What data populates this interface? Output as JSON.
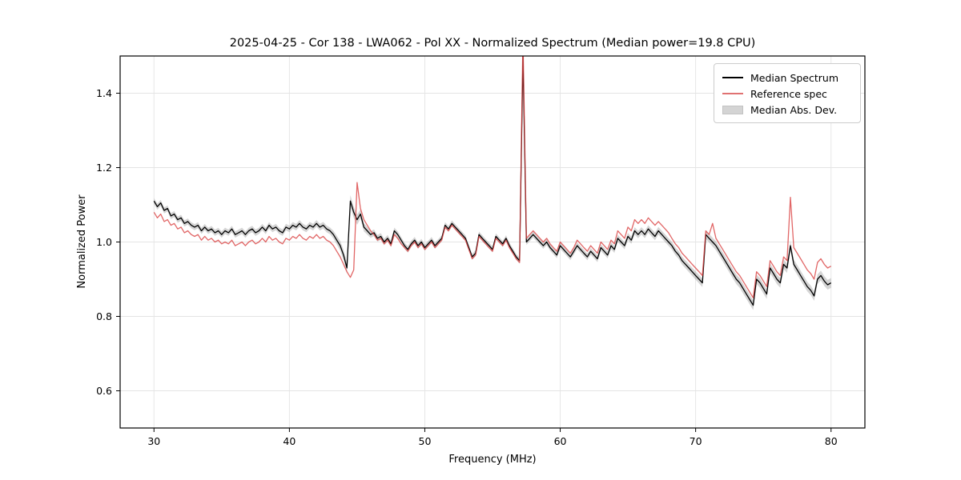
{
  "chart_data": {
    "type": "line",
    "title": "2025-04-25 - Cor 138 - LWA062 - Pol XX - Normalized Spectrum (Median power=19.8 CPU)",
    "xlabel": "Frequency (MHz)",
    "ylabel": "Normalized Power",
    "xlim": [
      27.5,
      82.5
    ],
    "ylim": [
      0.5,
      1.5
    ],
    "xticks": [
      30,
      40,
      50,
      60,
      70,
      80
    ],
    "ytick_labels": [
      "0.6",
      "0.8",
      "1.0",
      "1.2",
      "1.4"
    ],
    "yticks": [
      0.6,
      0.8,
      1.0,
      1.2,
      1.4
    ],
    "grid": true,
    "legend_position": "upper right",
    "x": {
      "start": 30.0,
      "step": 0.25,
      "count": 201,
      "unit": "MHz"
    },
    "series": [
      {
        "name": "Median Spectrum",
        "color": "#000000",
        "values": [
          1.11,
          1.095,
          1.105,
          1.085,
          1.09,
          1.07,
          1.075,
          1.06,
          1.065,
          1.05,
          1.055,
          1.045,
          1.04,
          1.045,
          1.03,
          1.04,
          1.03,
          1.035,
          1.025,
          1.03,
          1.02,
          1.03,
          1.025,
          1.035,
          1.02,
          1.025,
          1.03,
          1.02,
          1.03,
          1.035,
          1.025,
          1.03,
          1.04,
          1.03,
          1.045,
          1.035,
          1.04,
          1.03,
          1.025,
          1.04,
          1.035,
          1.045,
          1.04,
          1.05,
          1.04,
          1.035,
          1.045,
          1.04,
          1.05,
          1.04,
          1.045,
          1.035,
          1.03,
          1.02,
          1.005,
          0.99,
          0.965,
          0.93,
          1.11,
          1.08,
          1.06,
          1.075,
          1.04,
          1.03,
          1.02,
          1.025,
          1.01,
          1.015,
          1.0,
          1.01,
          0.995,
          1.03,
          1.02,
          1.005,
          0.99,
          0.98,
          0.995,
          1.005,
          0.99,
          1.0,
          0.985,
          0.995,
          1.005,
          0.99,
          1.0,
          1.01,
          1.045,
          1.035,
          1.05,
          1.04,
          1.03,
          1.02,
          1.01,
          0.985,
          0.96,
          0.97,
          1.02,
          1.01,
          1.0,
          0.99,
          0.98,
          1.015,
          1.005,
          0.995,
          1.01,
          0.99,
          0.975,
          0.96,
          0.95,
          1.5,
          1.0,
          1.01,
          1.02,
          1.01,
          1.0,
          0.99,
          1.0,
          0.985,
          0.975,
          0.965,
          0.99,
          0.98,
          0.97,
          0.96,
          0.975,
          0.99,
          0.98,
          0.97,
          0.96,
          0.975,
          0.965,
          0.955,
          0.985,
          0.975,
          0.965,
          0.99,
          0.98,
          1.01,
          1.0,
          0.99,
          1.015,
          1.005,
          1.03,
          1.02,
          1.03,
          1.02,
          1.035,
          1.025,
          1.015,
          1.03,
          1.02,
          1.01,
          1.0,
          0.99,
          0.975,
          0.965,
          0.95,
          0.94,
          0.93,
          0.92,
          0.91,
          0.9,
          0.89,
          1.02,
          1.01,
          1.0,
          0.99,
          0.975,
          0.96,
          0.945,
          0.93,
          0.915,
          0.9,
          0.89,
          0.875,
          0.86,
          0.845,
          0.83,
          0.9,
          0.89,
          0.875,
          0.86,
          0.93,
          0.915,
          0.9,
          0.89,
          0.94,
          0.93,
          0.99,
          0.94,
          0.925,
          0.91,
          0.895,
          0.88,
          0.87,
          0.855,
          0.9,
          0.91,
          0.895,
          0.885,
          0.89
        ]
      },
      {
        "name": "Reference spec",
        "color": "#d94040",
        "alpha": 0.8,
        "values": [
          1.08,
          1.065,
          1.075,
          1.055,
          1.06,
          1.045,
          1.05,
          1.035,
          1.04,
          1.025,
          1.03,
          1.02,
          1.015,
          1.02,
          1.005,
          1.015,
          1.005,
          1.01,
          1.0,
          1.005,
          0.995,
          1.0,
          0.995,
          1.005,
          0.99,
          0.995,
          1.0,
          0.99,
          1.0,
          1.005,
          0.995,
          1.0,
          1.01,
          1.0,
          1.015,
          1.005,
          1.01,
          1.0,
          0.995,
          1.01,
          1.005,
          1.015,
          1.01,
          1.02,
          1.01,
          1.005,
          1.015,
          1.01,
          1.02,
          1.01,
          1.015,
          1.005,
          1.0,
          0.99,
          0.975,
          0.96,
          0.94,
          0.92,
          0.905,
          0.925,
          1.16,
          1.09,
          1.06,
          1.045,
          1.03,
          1.02,
          1.005,
          1.01,
          0.995,
          1.005,
          0.99,
          1.02,
          1.01,
          0.995,
          0.985,
          0.975,
          0.99,
          1.0,
          0.985,
          0.995,
          0.98,
          0.99,
          1.0,
          0.985,
          0.995,
          1.005,
          1.04,
          1.03,
          1.045,
          1.035,
          1.025,
          1.015,
          1.005,
          0.98,
          0.955,
          0.965,
          1.015,
          1.005,
          0.995,
          0.985,
          0.975,
          1.01,
          1.0,
          0.99,
          1.005,
          0.985,
          0.97,
          0.955,
          0.945,
          1.55,
          1.01,
          1.02,
          1.03,
          1.02,
          1.01,
          1.0,
          1.01,
          0.995,
          0.985,
          0.975,
          1.0,
          0.99,
          0.98,
          0.97,
          0.985,
          1.005,
          0.995,
          0.985,
          0.975,
          0.99,
          0.98,
          0.97,
          1.0,
          0.99,
          0.98,
          1.005,
          0.995,
          1.03,
          1.02,
          1.01,
          1.04,
          1.03,
          1.06,
          1.05,
          1.06,
          1.05,
          1.065,
          1.055,
          1.045,
          1.055,
          1.045,
          1.035,
          1.025,
          1.01,
          0.995,
          0.985,
          0.97,
          0.96,
          0.95,
          0.94,
          0.93,
          0.92,
          0.91,
          1.03,
          1.02,
          1.05,
          1.01,
          0.995,
          0.98,
          0.965,
          0.95,
          0.935,
          0.92,
          0.91,
          0.895,
          0.88,
          0.865,
          0.85,
          0.92,
          0.91,
          0.895,
          0.88,
          0.95,
          0.935,
          0.92,
          0.91,
          0.96,
          0.95,
          1.12,
          0.985,
          0.97,
          0.955,
          0.94,
          0.925,
          0.915,
          0.9,
          0.945,
          0.955,
          0.94,
          0.93,
          0.935
        ]
      }
    ],
    "mad_band": {
      "name": "Median Abs. Dev.",
      "color": "#888888",
      "alpha": 0.35,
      "x": [
        30.0,
        43.0,
        44.0,
        44.5,
        46.0,
        52.0,
        57.0,
        63.0,
        70.0,
        73.0,
        80.0
      ],
      "halfwidth": [
        0.008,
        0.009,
        0.014,
        0.016,
        0.009,
        0.008,
        0.008,
        0.009,
        0.011,
        0.013,
        0.013
      ]
    },
    "legend": [
      {
        "label": "Median Spectrum",
        "swatch": "line",
        "color": "#000000"
      },
      {
        "label": "Reference spec",
        "swatch": "line",
        "color": "#e07272"
      },
      {
        "label": "Median Abs. Dev.",
        "swatch": "patch",
        "color": "#d4d4d4"
      }
    ]
  }
}
